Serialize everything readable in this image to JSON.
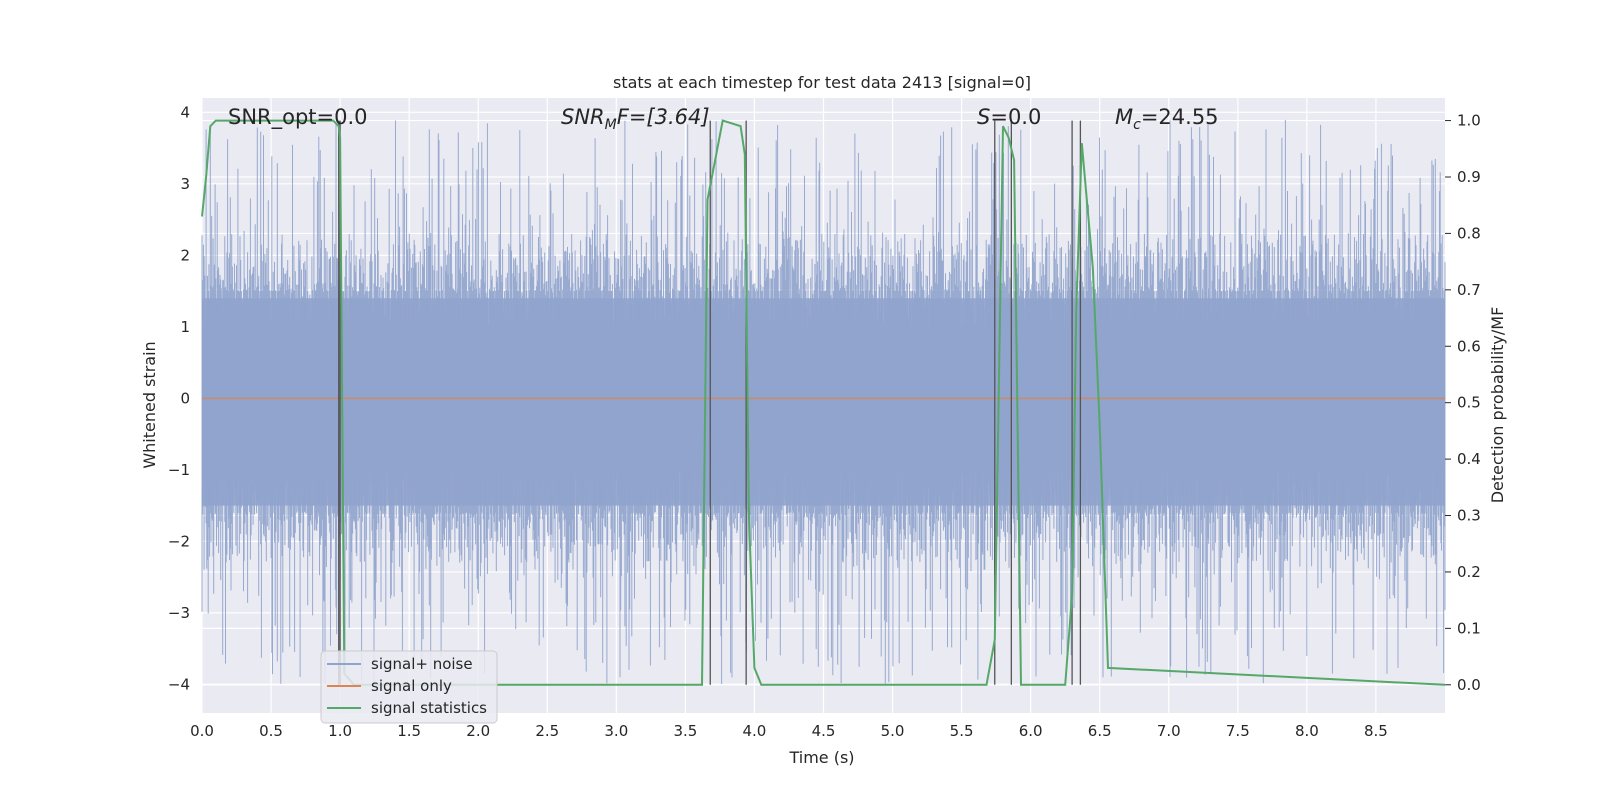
{
  "chart_data": {
    "type": "line",
    "title": "stats at each timestep for test data 2413 [signal=0]",
    "xlabel": "Time (s)",
    "ylabel": "Whitened strain",
    "ylabel_right": "Detection probability/MF",
    "xlim": [
      0.0,
      9.0
    ],
    "ylim": [
      -4.4,
      4.2
    ],
    "ylim_right": [
      -0.05,
      1.04
    ],
    "xticks": [
      "0.0",
      "0.5",
      "1.0",
      "1.5",
      "2.0",
      "2.5",
      "3.0",
      "3.5",
      "4.0",
      "4.5",
      "5.0",
      "5.5",
      "6.0",
      "6.5",
      "7.0",
      "7.5",
      "8.0",
      "8.5"
    ],
    "xtick_values": [
      0.0,
      0.5,
      1.0,
      1.5,
      2.0,
      2.5,
      3.0,
      3.5,
      4.0,
      4.5,
      5.0,
      5.5,
      6.0,
      6.5,
      7.0,
      7.5,
      8.0,
      8.5
    ],
    "yticks": [
      "4",
      "3",
      "2",
      "1",
      "0",
      "−1",
      "−2",
      "−3",
      "−4"
    ],
    "ytick_values": [
      4,
      3,
      2,
      1,
      0,
      -1,
      -2,
      -3,
      -4
    ],
    "yticks_right": [
      "1.0",
      "0.9",
      "0.8",
      "0.7",
      "0.6",
      "0.5",
      "0.4",
      "0.3",
      "0.2",
      "0.1",
      "0.0"
    ],
    "ytick_right_values": [
      1.0,
      0.9,
      0.8,
      0.7,
      0.6,
      0.5,
      0.4,
      0.3,
      0.2,
      0.1,
      0.0
    ],
    "grid": true,
    "legend_position": "bottom-left",
    "annotations": {
      "snr_opt": "SNR_opt=0.0",
      "snr_mf_main": "SNR",
      "snr_mf_sub": "M",
      "snr_mf_rest": "F=[3.64]",
      "s_main": "S",
      "s_rest": "=0.0",
      "mc_main": "M",
      "mc_sub": "c",
      "mc_rest": "=24.55"
    },
    "series": [
      {
        "name": "signal+ noise",
        "color": "#8fa3cc",
        "axis": "left",
        "description_values": "noise envelope",
        "x_range": [
          0.0,
          9.0
        ],
        "envelope": {
          "typical_min": -1.6,
          "typical_max": 1.5,
          "peak_min": -4.0,
          "peak_max": 3.9
        }
      },
      {
        "name": "signal only",
        "color": "#dd8452",
        "axis": "left",
        "x": [
          0.0,
          9.0
        ],
        "y": [
          0.0,
          0.0
        ]
      },
      {
        "name": "signal statistics",
        "color": "#55a868",
        "axis": "right",
        "x": [
          0.0,
          0.03,
          0.06,
          0.1,
          0.3,
          0.6,
          0.8,
          0.95,
          0.99,
          1.0,
          1.03,
          1.1,
          3.0,
          3.62,
          3.66,
          3.7,
          3.77,
          3.9,
          3.93,
          3.96,
          4.0,
          4.05,
          5.5,
          5.68,
          5.74,
          5.8,
          5.84,
          5.88,
          5.93,
          6.25,
          6.3,
          6.33,
          6.37,
          6.45,
          6.5,
          6.56,
          9.0
        ],
        "y": [
          0.83,
          0.9,
          0.99,
          1.0,
          1.0,
          1.0,
          1.0,
          1.0,
          0.99,
          0.97,
          0.02,
          0.0,
          0.0,
          0.0,
          0.86,
          0.91,
          1.0,
          0.99,
          0.94,
          0.3,
          0.03,
          0.0,
          0.0,
          0.0,
          0.08,
          0.99,
          0.97,
          0.93,
          0.0,
          0.0,
          0.16,
          0.66,
          0.96,
          0.74,
          0.46,
          0.03,
          0.0
        ]
      }
    ],
    "vertical_markers": [
      0.99,
      1.0,
      3.68,
      3.94,
      5.74,
      5.86,
      6.3,
      6.36
    ]
  },
  "legend": {
    "items": [
      {
        "label": "signal+ noise",
        "color": "#8fa3cc"
      },
      {
        "label": "signal only",
        "color": "#dd8452"
      },
      {
        "label": "signal statistics",
        "color": "#55a868"
      }
    ]
  }
}
